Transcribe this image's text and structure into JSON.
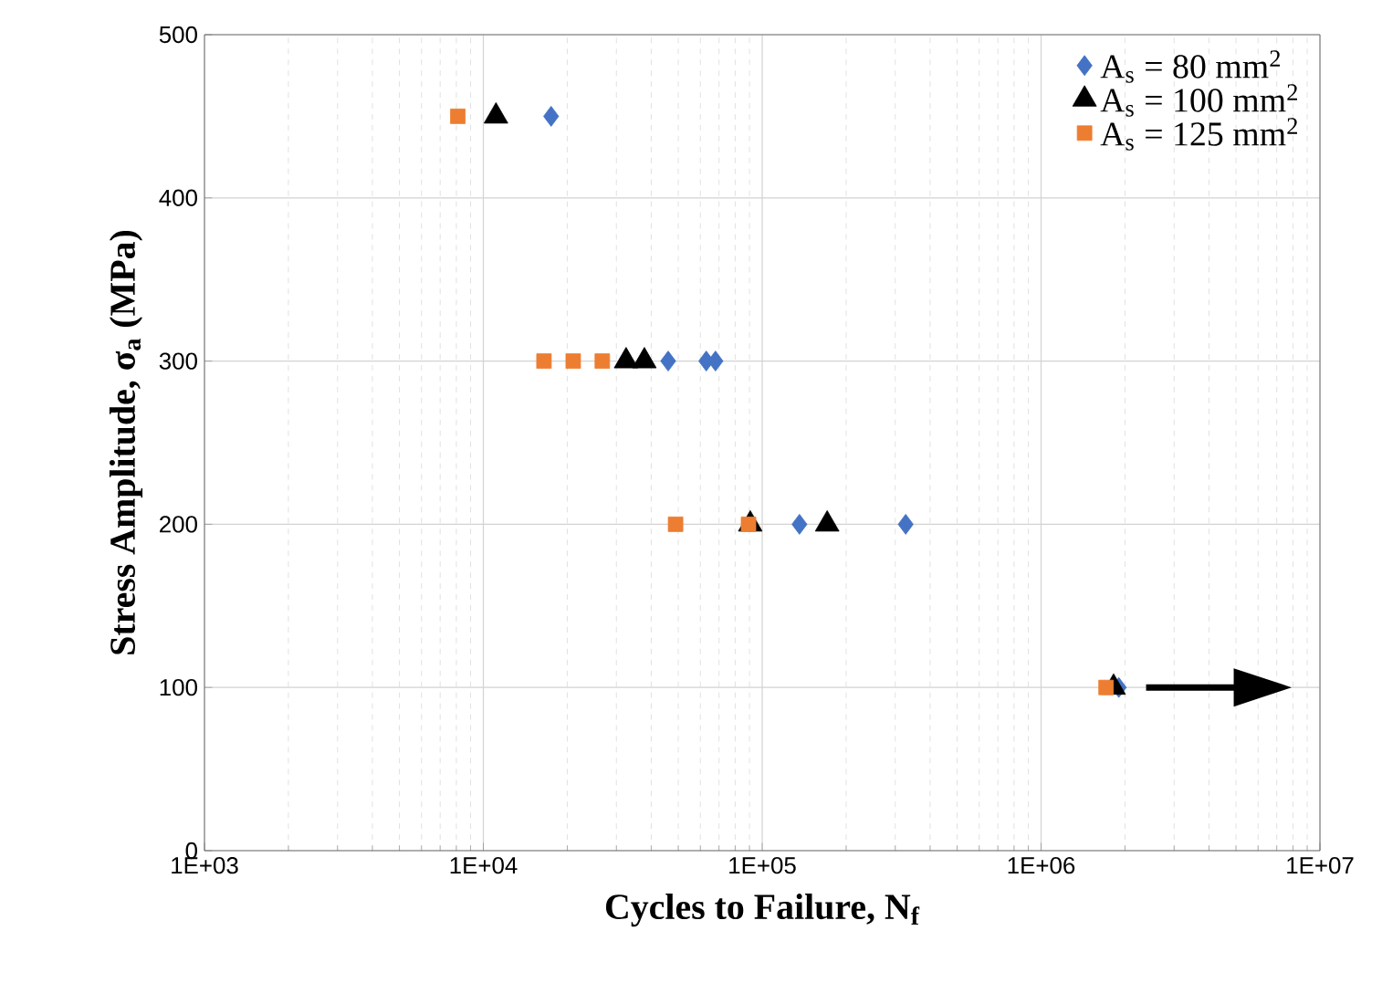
{
  "chart_data": {
    "type": "scatter",
    "xlabel": "Cycles to Failure, N$_{f}$",
    "ylabel": "Stress Amplitude, σ$_{a}$ (MPa)",
    "log": "x",
    "grid": true,
    "legend": "top right",
    "xlim": [
      1000,
      10000000
    ],
    "ylim": [
      0,
      500
    ],
    "xticks": [
      {
        "value": 1000,
        "label": "1E+03"
      },
      {
        "value": 10000,
        "label": "1E+04"
      },
      {
        "value": 100000,
        "label": "1E+05"
      },
      {
        "value": 1000000,
        "label": "1E+06"
      },
      {
        "value": 10000000,
        "label": "1E+07"
      }
    ],
    "yticks": [
      0,
      100,
      200,
      300,
      400,
      500
    ],
    "series": [
      {
        "name": "A$_{s}$ =   80 mm$^{2}$",
        "color": "#4472c4",
        "marker": "diamond",
        "x": [
          17500,
          46000,
          63000,
          68000,
          136000,
          327000,
          1900000
        ],
        "values": [
          450,
          300,
          300,
          300,
          200,
          200,
          100
        ]
      },
      {
        "name": "A$_{s}$ = 100 mm$^{2}$",
        "color": "#000000",
        "marker": "triangle",
        "x": [
          11100,
          32500,
          37800,
          90600,
          171000,
          1820000
        ],
        "values": [
          450,
          300,
          300,
          200,
          200,
          100
        ]
      },
      {
        "name": "A$_{s}$ = 125 mm$^{2}$",
        "color": "#ed7d31",
        "marker": "square",
        "x": [
          8100,
          16500,
          21000,
          26700,
          48900,
          89300,
          1710000
        ],
        "values": [
          450,
          300,
          300,
          300,
          200,
          200,
          100
        ]
      }
    ]
  }
}
